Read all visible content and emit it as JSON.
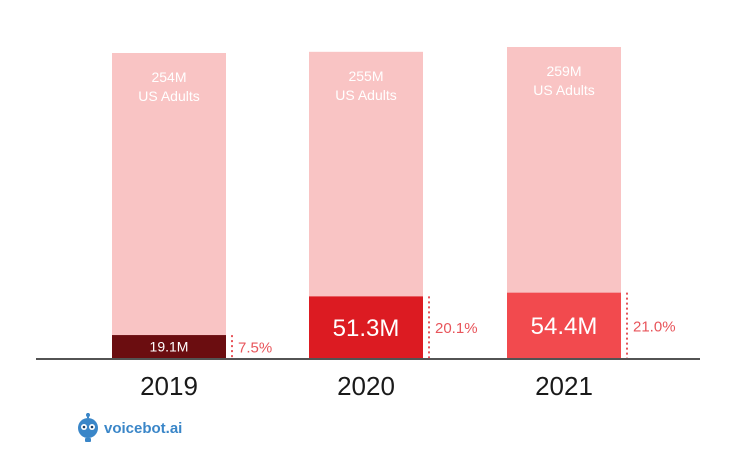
{
  "chart_data": {
    "type": "bar",
    "categories": [
      "2019",
      "2020",
      "2021"
    ],
    "series": [
      {
        "values": [
          254,
          255,
          259
        ]
      },
      {
        "values": [
          19.1,
          51.3,
          54.4
        ]
      }
    ],
    "background_labels": [
      "254M",
      "255M",
      "259M"
    ],
    "background_sublabel": "US Adults",
    "value_labels": [
      "19.1M",
      "51.3M",
      "54.4M"
    ],
    "percent_labels": [
      "7.5%",
      "20.1%",
      "21.0%"
    ],
    "ylim": [
      0,
      259
    ],
    "grid": false,
    "colors": {
      "background_bar": "#f9c4c4",
      "value_bars": [
        "#6b0d10",
        "#dc1b22",
        "#f24a4e"
      ],
      "percent_text": "#e8555b",
      "baseline": "#1a1a1a"
    }
  },
  "branding": {
    "logo_text": "voicebot.ai",
    "logo_icon": "robot-mascot-icon"
  }
}
